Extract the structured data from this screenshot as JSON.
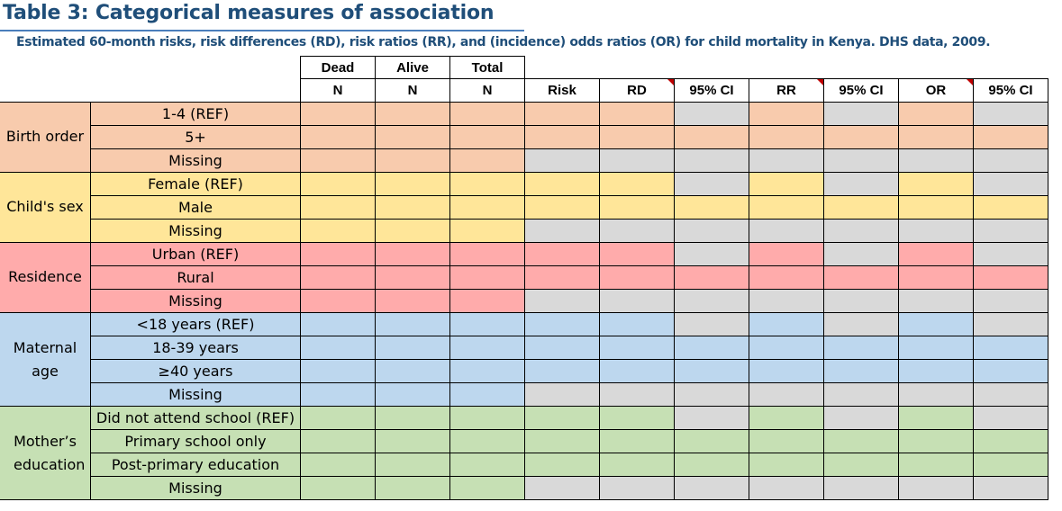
{
  "title": "Table 3: Categorical measures of association",
  "subtitle": "Estimated 60-month risks, risk differences (RD), risk ratios (RR), and (incidence) odds ratios (OR) for child mortality in Kenya. DHS data, 2009.",
  "header": {
    "top": [
      "Dead",
      "Alive",
      "Total"
    ],
    "bottom": [
      "N",
      "N",
      "N",
      "Risk",
      "RD",
      "95% CI",
      "RR",
      "95% CI",
      "OR",
      "95% CI"
    ]
  },
  "groups": [
    {
      "label": "Birth order",
      "color": "#f8cbad",
      "rows": [
        "1-4 (REF)",
        "5+",
        "Missing"
      ]
    },
    {
      "label": "Child's sex",
      "color": "#ffe699",
      "rows": [
        "Female (REF)",
        "Male",
        "Missing"
      ]
    },
    {
      "label": "Residence",
      "color": "#ffabab",
      "rows": [
        "Urban (REF)",
        "Rural",
        "Missing"
      ]
    },
    {
      "label": "Maternal age",
      "color": "#bdd7ee",
      "rows": [
        "<18 years (REF)",
        "18-39 years",
        "≥40 years",
        "Missing"
      ]
    },
    {
      "label": "Mother’s education",
      "color": "#c6e0b4",
      "rows": [
        "Did not attend school (REF)",
        "Primary school only",
        "Post-primary education",
        "Missing"
      ]
    }
  ],
  "colors": {
    "gray": "#d9d9d9",
    "border": "#000000",
    "comment_marker": "#c00000"
  }
}
